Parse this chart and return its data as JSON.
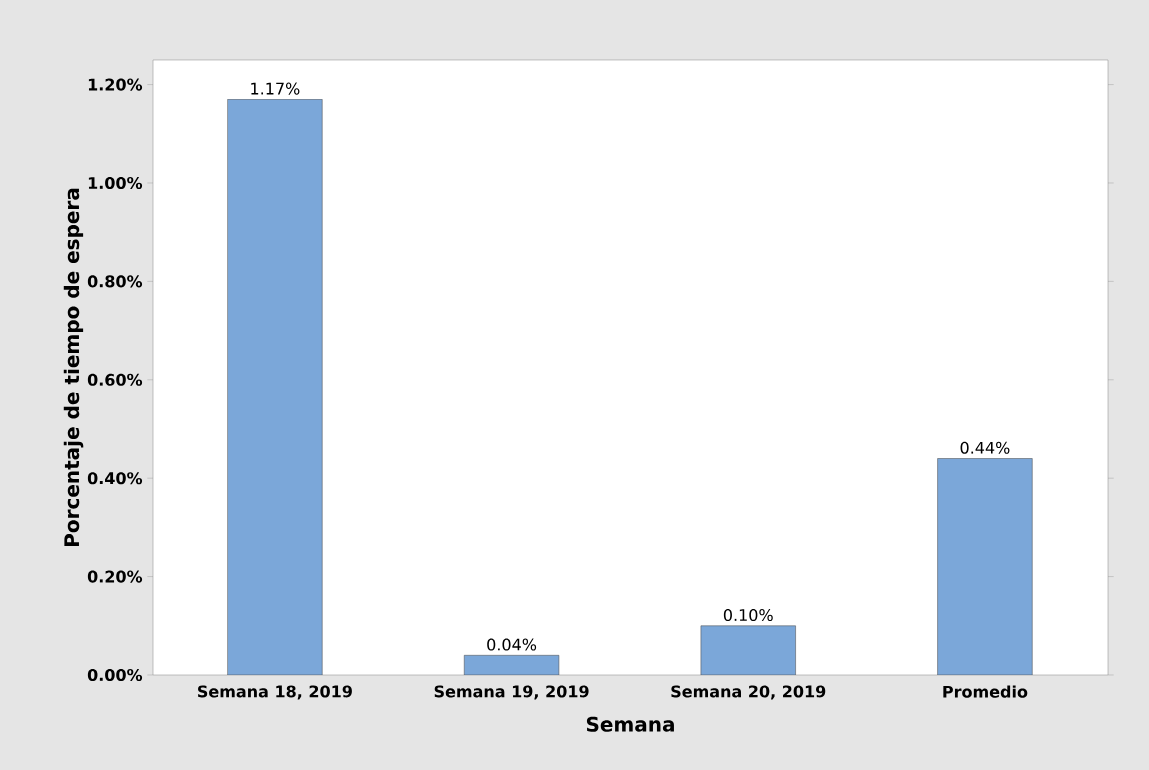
{
  "chart_data": {
    "type": "bar",
    "xlabel": "Semana",
    "ylabel": "Porcentaje de tiempo de espera",
    "categories": [
      "Semana 18, 2019",
      "Semana 19, 2019",
      "Semana 20, 2019",
      "Promedio"
    ],
    "values": [
      1.17,
      0.04,
      0.1,
      0.44
    ],
    "value_labels": [
      "1.17%",
      "0.04%",
      "0.10%",
      "0.44%"
    ],
    "color": "#7ba7d9",
    "ylim": [
      0,
      1.25
    ],
    "yticks": [
      {
        "value": 0,
        "label": "0.00%"
      },
      {
        "value": 0.2,
        "label": "0.20%"
      },
      {
        "value": 0.4,
        "label": "0.40%"
      },
      {
        "value": 0.6,
        "label": "0.60%"
      },
      {
        "value": 0.8,
        "label": "0.80%"
      },
      {
        "value": 1.0,
        "label": "1.00%"
      },
      {
        "value": 1.2,
        "label": "1.20%"
      }
    ],
    "grid": false
  }
}
